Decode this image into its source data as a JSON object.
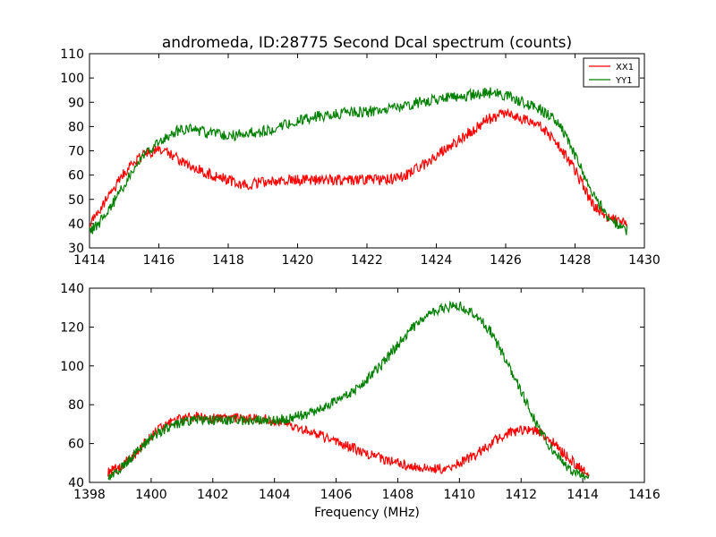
{
  "chart_data": [
    {
      "type": "line",
      "title": "andromeda, ID:28775 Second Dcal spectrum (counts)",
      "xlabel": "",
      "ylabel": "",
      "xlim": [
        1414,
        1430
      ],
      "ylim": [
        30,
        110
      ],
      "xticks": [
        "1414",
        "1416",
        "1418",
        "1420",
        "1422",
        "1424",
        "1426",
        "1428",
        "1430"
      ],
      "yticks": [
        "30",
        "40",
        "50",
        "60",
        "70",
        "80",
        "90",
        "100",
        "110"
      ],
      "grid": false,
      "legend": "top-right",
      "x": [
        1414.0,
        1414.5,
        1415.0,
        1415.5,
        1416.0,
        1416.5,
        1417.0,
        1417.5,
        1418.0,
        1418.5,
        1419.0,
        1419.5,
        1420.0,
        1420.5,
        1421.0,
        1421.5,
        1422.0,
        1422.5,
        1423.0,
        1423.5,
        1424.0,
        1424.5,
        1425.0,
        1425.5,
        1426.0,
        1426.5,
        1427.0,
        1427.5,
        1428.0,
        1428.5,
        1429.0,
        1429.5
      ],
      "series": [
        {
          "name": "XX1",
          "color": "#ff0000",
          "values": [
            40,
            50,
            61,
            68,
            71,
            67,
            63,
            60,
            58,
            56,
            57,
            58,
            58,
            58,
            58,
            58,
            58,
            58,
            59,
            63,
            68,
            73,
            78,
            83,
            86,
            83,
            80,
            73,
            62,
            48,
            42,
            40
          ]
        },
        {
          "name": "YY1",
          "color": "#008000",
          "values": [
            36,
            44,
            56,
            68,
            74,
            78,
            79,
            77,
            76,
            77,
            78,
            80,
            82,
            84,
            85,
            86,
            86,
            87,
            88,
            90,
            91,
            92,
            93,
            94,
            93,
            90,
            87,
            82,
            68,
            52,
            42,
            37
          ]
        }
      ]
    },
    {
      "type": "line",
      "title": "",
      "xlabel": "Frequency (MHz)",
      "ylabel": "",
      "xlim": [
        1398,
        1416
      ],
      "ylim": [
        40,
        140
      ],
      "xticks": [
        "1398",
        "1400",
        "1402",
        "1404",
        "1406",
        "1408",
        "1410",
        "1412",
        "1414",
        "1416"
      ],
      "yticks": [
        "40",
        "60",
        "80",
        "100",
        "120",
        "140"
      ],
      "grid": false,
      "legend": "none",
      "x": [
        1398.6,
        1399.0,
        1399.5,
        1400.0,
        1400.5,
        1401.0,
        1401.5,
        1402.0,
        1402.5,
        1403.0,
        1403.5,
        1404.0,
        1404.5,
        1405.0,
        1405.5,
        1406.0,
        1406.5,
        1407.0,
        1407.5,
        1408.0,
        1408.5,
        1409.0,
        1409.5,
        1410.0,
        1410.5,
        1411.0,
        1411.5,
        1412.0,
        1412.5,
        1413.0,
        1413.5,
        1414.0,
        1414.2
      ],
      "series": [
        {
          "name": "XX1",
          "color": "#ff0000",
          "values": [
            45,
            48,
            55,
            64,
            70,
            73,
            74,
            73,
            73,
            73,
            73,
            72,
            70,
            67,
            64,
            61,
            58,
            55,
            52,
            50,
            48,
            47,
            47,
            50,
            54,
            60,
            65,
            67,
            67,
            61,
            53,
            46,
            45
          ]
        },
        {
          "name": "YY1",
          "color": "#008000",
          "values": [
            43,
            47,
            55,
            63,
            68,
            71,
            72,
            72,
            72,
            72,
            72,
            72,
            73,
            75,
            78,
            82,
            86,
            93,
            101,
            111,
            120,
            126,
            130,
            131,
            127,
            118,
            103,
            87,
            70,
            57,
            48,
            43,
            42
          ]
        }
      ]
    }
  ]
}
